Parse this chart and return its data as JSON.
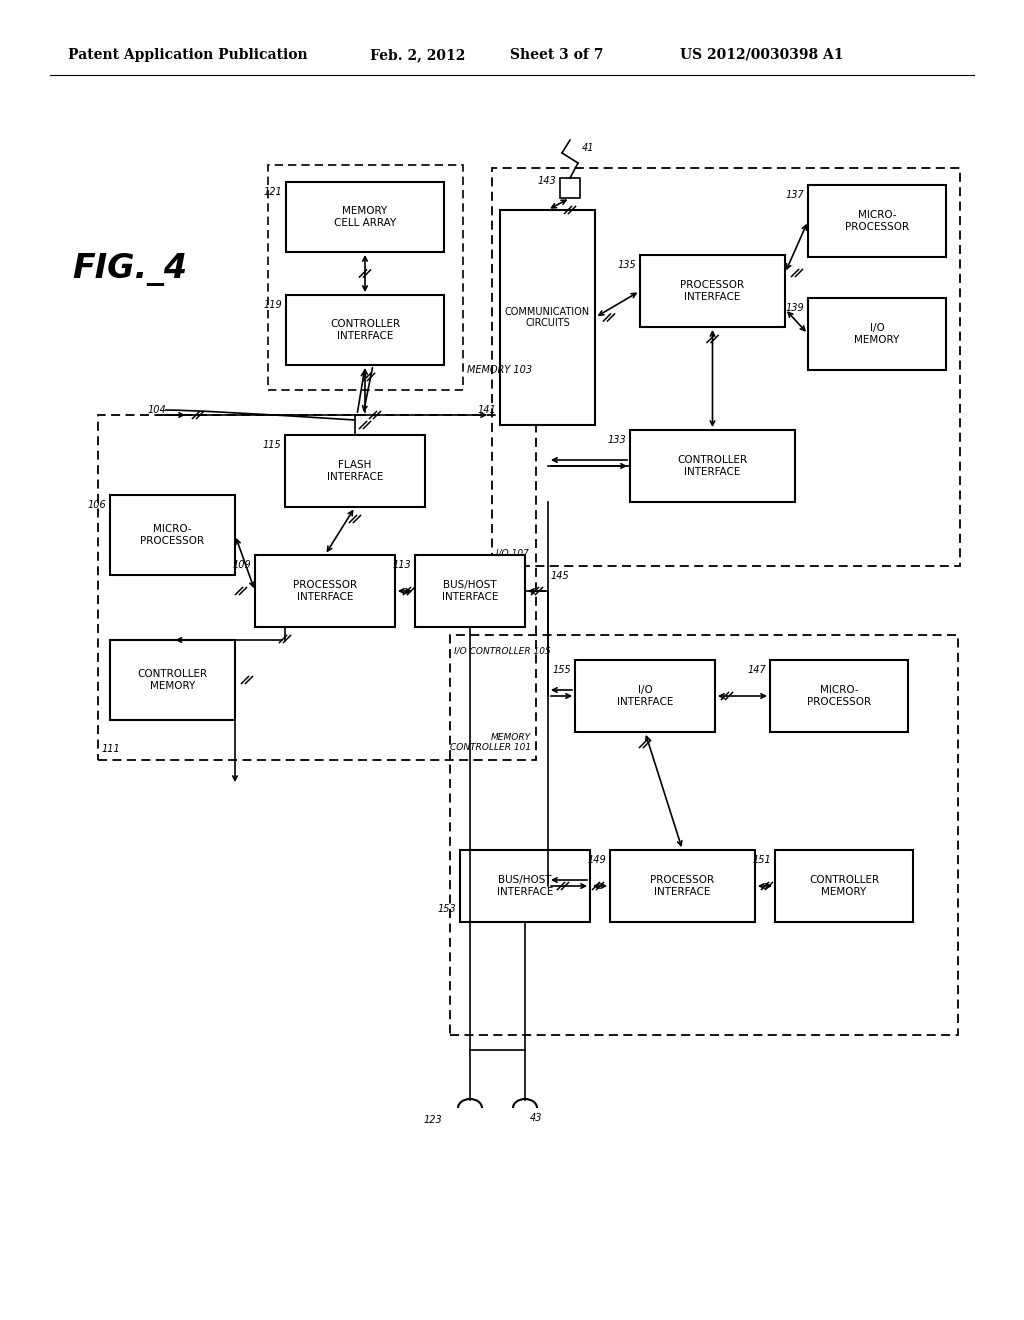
{
  "bg_color": "#ffffff",
  "header_text": "Patent Application Publication",
  "header_date": "Feb. 2, 2012",
  "header_sheet": "Sheet 3 of 7",
  "header_patent": "US 2012/0030398 A1"
}
